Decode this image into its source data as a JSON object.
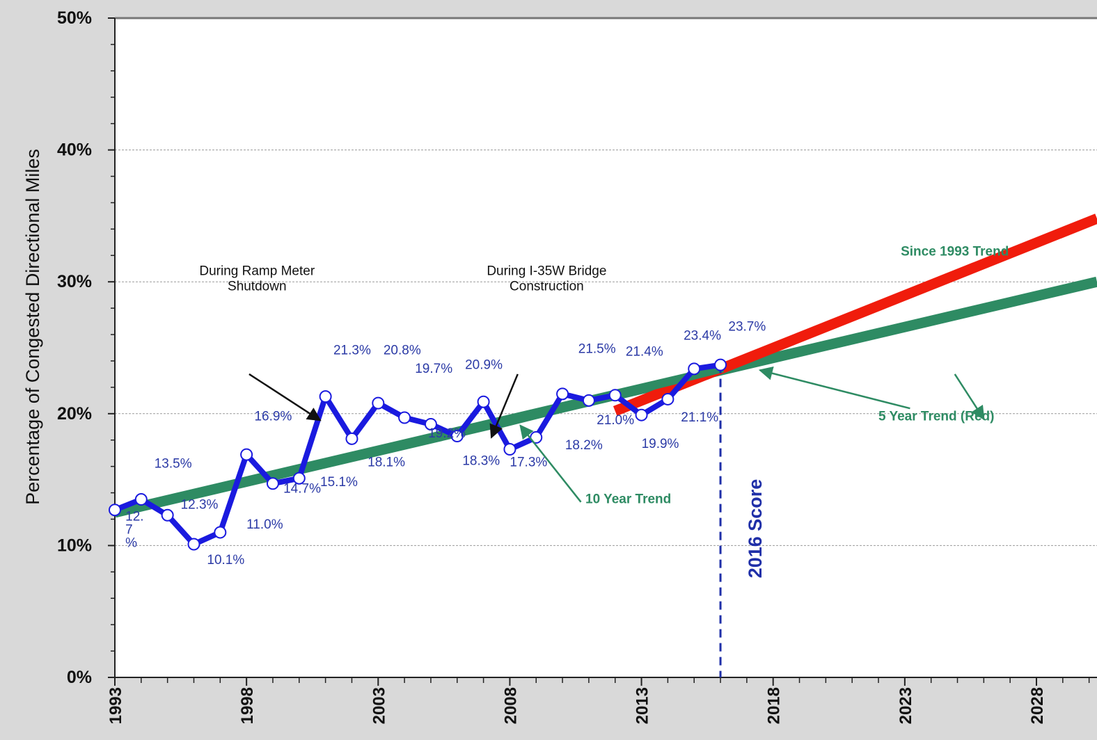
{
  "chart_data": {
    "type": "line",
    "ylabel": "Percentage of Congested Directional Miles",
    "xlim": [
      1993,
      2030.3
    ],
    "ylim": [
      0,
      50
    ],
    "y_ticks": [
      "0%",
      "10%",
      "20%",
      "30%",
      "40%",
      "50%"
    ],
    "y_tick_values": [
      0,
      10,
      20,
      30,
      40,
      50
    ],
    "x_ticks": [
      "1993",
      "1998",
      "2003",
      "2008",
      "2013",
      "2018",
      "2023",
      "2028"
    ],
    "x_tick_values": [
      1993,
      1998,
      2003,
      2008,
      2013,
      2018,
      2023,
      2028
    ],
    "grid": "horizontal",
    "series": [
      {
        "kind": "observed",
        "color": "#1a1adf",
        "x": [
          1993,
          1994,
          1995,
          1996,
          1997,
          1998,
          1999,
          2000,
          2001,
          2002,
          2003,
          2004,
          2005,
          2006,
          2007,
          2008,
          2009,
          2010,
          2011,
          2012,
          2013,
          2014,
          2015,
          2016
        ],
        "values": [
          12.7,
          13.5,
          12.3,
          10.1,
          11.0,
          16.9,
          14.7,
          15.1,
          21.3,
          18.1,
          20.8,
          19.7,
          19.2,
          18.3,
          20.9,
          17.3,
          18.2,
          21.5,
          21.0,
          21.4,
          19.9,
          21.1,
          23.4,
          23.7
        ]
      },
      {
        "name": "Since 1993 Trend",
        "kind": "trend",
        "color": "#2e8b63",
        "x": [
          1993,
          2030.3
        ],
        "values": [
          12.5,
          30.0
        ]
      },
      {
        "name": "5 Year Trend (Red)",
        "kind": "trend",
        "color": "#f01c0c",
        "x": [
          2012,
          2030.3
        ],
        "values": [
          20.2,
          34.8
        ]
      },
      {
        "name": "10 Year Trend",
        "kind": "trend",
        "color": "#2e8b63",
        "x": [
          2007.3,
          2016.1
        ],
        "values": [
          19.0,
          23.4
        ]
      }
    ],
    "data_labels": [
      {
        "text": "12.",
        "x": 1993.4,
        "y": 11.9
      },
      {
        "text": "7",
        "x": 1993.4,
        "y": 10.9
      },
      {
        "text": "%",
        "x": 1993.4,
        "y": 9.9
      },
      {
        "text": "13.5%",
        "x": 1994.5,
        "y": 15.9
      },
      {
        "text": "12.3%",
        "x": 1995.5,
        "y": 12.8
      },
      {
        "text": "10.1%",
        "x": 1996.5,
        "y": 8.6
      },
      {
        "text": "11.0%",
        "x": 1998.0,
        "y": 11.3
      },
      {
        "text": "16.9%",
        "x": 1998.3,
        "y": 19.5
      },
      {
        "text": "14.7%",
        "x": 1999.4,
        "y": 14.0
      },
      {
        "text": "15.1%",
        "x": 2000.8,
        "y": 14.5
      },
      {
        "text": "21.3%",
        "x": 2001.3,
        "y": 24.5
      },
      {
        "text": "18.1%",
        "x": 2002.6,
        "y": 16.0
      },
      {
        "text": "20.8%",
        "x": 2003.2,
        "y": 24.5
      },
      {
        "text": "19.7%",
        "x": 2004.4,
        "y": 23.1
      },
      {
        "text": "19.2%",
        "x": 2004.9,
        "y": 18.2
      },
      {
        "text": "18.3%",
        "x": 2006.2,
        "y": 16.1
      },
      {
        "text": "20.9%",
        "x": 2006.3,
        "y": 23.4
      },
      {
        "text": "17.3%",
        "x": 2008.0,
        "y": 16.0
      },
      {
        "text": "18.2%",
        "x": 2010.1,
        "y": 17.3
      },
      {
        "text": "21.5%",
        "x": 2010.6,
        "y": 24.6
      },
      {
        "text": "21.0%",
        "x": 2011.3,
        "y": 19.2
      },
      {
        "text": "21.4%",
        "x": 2012.4,
        "y": 24.4
      },
      {
        "text": "19.9%",
        "x": 2013.0,
        "y": 17.4
      },
      {
        "text": "21.1%",
        "x": 2014.5,
        "y": 19.4
      },
      {
        "text": "23.4%",
        "x": 2014.6,
        "y": 25.6
      },
      {
        "text": "23.7%",
        "x": 2016.3,
        "y": 26.3
      }
    ],
    "annotations": [
      {
        "lines": [
          "During Ramp Meter",
          "Shutdown"
        ],
        "x": 1998.4,
        "y": 30.5,
        "style": "black",
        "arrow": {
          "from": [
            1998.1,
            23.0
          ],
          "to": [
            2000.8,
            19.5
          ]
        }
      },
      {
        "lines": [
          "During I-35W Bridge",
          "Construction"
        ],
        "x": 2009.4,
        "y": 30.5,
        "style": "black",
        "arrow": {
          "from": [
            2008.3,
            23.0
          ],
          "to": [
            2007.3,
            18.2
          ]
        }
      },
      {
        "lines": [
          "Since 1993 Trend"
        ],
        "x": 2024.9,
        "y": 32.0,
        "style": "green",
        "arrow": {
          "from": [
            2024.9,
            23.0
          ],
          "to": [
            2026.0,
            19.6
          ]
        }
      },
      {
        "lines": [
          "5 Year Trend (Red)"
        ],
        "x": 2024.2,
        "y": 19.5,
        "style": "green",
        "arrow": {
          "from": [
            2023.2,
            20.4
          ],
          "to": [
            2017.5,
            23.3
          ]
        }
      },
      {
        "lines": [
          "10 Year Trend"
        ],
        "x": 2012.5,
        "y": 13.2,
        "style": "green",
        "arrow": {
          "from": [
            2010.7,
            13.3
          ],
          "to": [
            2008.4,
            19.1
          ]
        }
      }
    ],
    "marker": {
      "x": 2016,
      "label": "2016 Score",
      "color": "#1f2fa8"
    }
  }
}
